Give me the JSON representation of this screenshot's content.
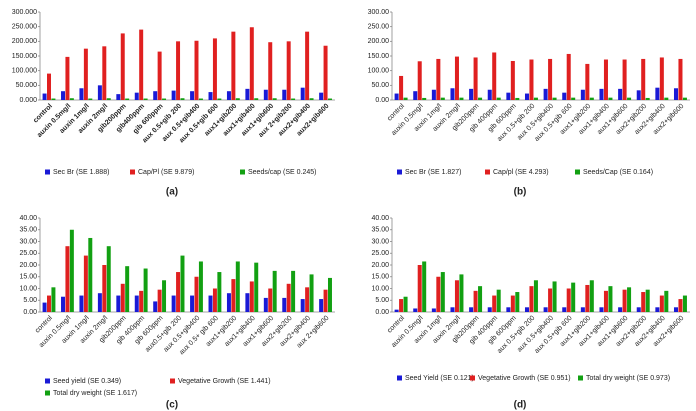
{
  "chart_data": [
    {
      "type": "bar",
      "label": "(a)",
      "bold_categories": true,
      "categories": [
        "control",
        "auxin 0.5mg/l",
        "auxin 1mg/l",
        "auxin 2mg/l",
        "gib200ppm",
        "gib400ppm",
        "gib 600ppm",
        "aux 0.5+gib 200",
        "aux 0.5+gib400",
        "aux 0.5+gib 600",
        "aux1+gib200",
        "aux1+gib400",
        "aux1+gib600",
        "aux 2+gib200",
        "aux2+gib400",
        "aux2+gib600"
      ],
      "series": [
        {
          "name": "Sec Br (SE 1.888)",
          "color": "#1a1ad6",
          "values": [
            22,
            30,
            40,
            50,
            20,
            25,
            30,
            32,
            30,
            27,
            30,
            38,
            35,
            35,
            42,
            25
          ]
        },
        {
          "name": "Cap/Pl (SE 9.879)",
          "color": "#e02020",
          "values": [
            90,
            147,
            175,
            183,
            227,
            240,
            165,
            200,
            202,
            210,
            233,
            248,
            197,
            200,
            233,
            185
          ]
        },
        {
          "name": "Seeds/cap (SE 0.245)",
          "color": "#12a012",
          "values": [
            5,
            6,
            5,
            6,
            5,
            5,
            5,
            6,
            5,
            5,
            6,
            6,
            6,
            5,
            6,
            5
          ]
        }
      ],
      "ylim": [
        0,
        300
      ],
      "yticks": [
        {
          "value": 0,
          "label": "0.000"
        },
        {
          "value": 50,
          "label": "50.000"
        },
        {
          "value": 100,
          "label": "100.000"
        },
        {
          "value": 150,
          "label": "150.000"
        },
        {
          "value": 200,
          "label": "200.000"
        },
        {
          "value": 250,
          "label": "250.000"
        },
        {
          "value": 300,
          "label": "300.000"
        }
      ]
    },
    {
      "type": "bar",
      "label": "(b)",
      "bold_categories": false,
      "categories": [
        "control",
        "auxin 0.5mg/l",
        "auxin 1mg/l",
        "auxin 2mg/l",
        "gib200ppm",
        "gib 400ppm",
        "gib 600ppm",
        "aux 0.5+gib 200",
        "aux 0.5+gib400",
        "aux 0.5+gib 600",
        "aux1+gib200",
        "aux1+gib400",
        "aux1+gib600",
        "aux2+gib200",
        "aux2+gib400",
        "aux2+gib600"
      ],
      "series": [
        {
          "name": "Sec Br (SE 1.827)",
          "color": "#1a1ad6",
          "values": [
            22,
            30,
            35,
            40,
            38,
            35,
            25,
            22,
            38,
            25,
            35,
            38,
            38,
            33,
            42,
            40
          ]
        },
        {
          "name": "Cap/pl (SE 4.293)",
          "color": "#e02020",
          "values": [
            82,
            132,
            140,
            148,
            145,
            162,
            133,
            138,
            140,
            157,
            123,
            138,
            138,
            140,
            145,
            140
          ]
        },
        {
          "name": "Seeds/Cap (SE 0.164)",
          "color": "#12a012",
          "values": [
            8,
            7,
            8,
            8,
            8,
            8,
            7,
            8,
            8,
            8,
            8,
            8,
            8,
            7,
            8,
            8
          ]
        }
      ],
      "ylim": [
        0,
        300
      ],
      "yticks": [
        {
          "value": 0,
          "label": "0.00"
        },
        {
          "value": 50,
          "label": "50.00"
        },
        {
          "value": 100,
          "label": "100.00"
        },
        {
          "value": 150,
          "label": "150.00"
        },
        {
          "value": 200,
          "label": "200.00"
        },
        {
          "value": 250,
          "label": "250.00"
        },
        {
          "value": 300,
          "label": "300.00"
        }
      ]
    },
    {
      "type": "bar",
      "label": "(c)",
      "bold_categories": false,
      "categories": [
        "control",
        "auxin 0.5mg/l",
        "auxin 1mg/l",
        "auxin 2mg/l",
        "gib200ppm",
        "gib 400ppm",
        "gib 600ppm",
        "aux0.5+gib 200",
        "aux 0.5+gib400",
        "aux 0.5+ gib 600",
        "aux1+gib200",
        "aux1+gib400",
        "aux1+gib600",
        "aux2+gib200",
        "aux2+gib400",
        "aux 2+gib600"
      ],
      "series": [
        {
          "name": "Seed yield (SE 0.349)",
          "color": "#1a1ad6",
          "values": [
            4,
            6.5,
            7,
            8,
            7,
            7,
            4.5,
            7,
            7,
            7,
            8,
            8,
            6,
            6,
            5.5,
            5.5
          ]
        },
        {
          "name": "Vegetative Growth (SE 1.441)",
          "color": "#e02020",
          "values": [
            7,
            28,
            24,
            20,
            12,
            9,
            9.5,
            17,
            15,
            10,
            14,
            13,
            10,
            12,
            10.5,
            9.5
          ]
        },
        {
          "name": "Total dry weight (SE 1.617)",
          "color": "#12a012",
          "values": [
            10.5,
            35,
            31.5,
            28,
            19.5,
            18.5,
            13.5,
            24,
            21.5,
            17,
            21.5,
            21,
            17.5,
            17.5,
            16,
            14.5
          ]
        }
      ],
      "ylim": [
        0,
        40
      ],
      "yticks": [
        {
          "value": 0,
          "label": "0.00"
        },
        {
          "value": 5,
          "label": "5.00"
        },
        {
          "value": 10,
          "label": "10.00"
        },
        {
          "value": 15,
          "label": "15.00"
        },
        {
          "value": 20,
          "label": "20.00"
        },
        {
          "value": 25,
          "label": "25.00"
        },
        {
          "value": 30,
          "label": "30.00"
        },
        {
          "value": 35,
          "label": "35.00"
        },
        {
          "value": 40,
          "label": "40.00"
        }
      ]
    },
    {
      "type": "bar",
      "label": "(d)",
      "bold_categories": false,
      "categories": [
        "control",
        "auxin 0.5mg/l",
        "auxin 1mg/l",
        "auxin 2mg/l",
        "gib200ppm",
        "gib 400ppm",
        "gib 600ppm",
        "aux 0.5+gib 200",
        "aux 0.5+gib400",
        "aux 0.5+gib 600",
        "aux1+gib200",
        "aux1+gib400",
        "aux1+gib600",
        "aux2+gib200",
        "aux2+gib400",
        "aux2+gib600"
      ],
      "series": [
        {
          "name": "Seed Yield (SE 0.121)",
          "color": "#1a1ad6",
          "values": [
            1,
            1.5,
            1.5,
            2,
            2,
            2,
            2,
            2,
            2,
            2,
            2,
            2,
            2,
            2,
            2,
            2
          ]
        },
        {
          "name": "Vegetative Growth (SE 0.951)",
          "color": "#e02020",
          "values": [
            5.5,
            20,
            15,
            13.5,
            9,
            7,
            7,
            11,
            10,
            10,
            11.5,
            9,
            9.5,
            8.5,
            7,
            5.5
          ]
        },
        {
          "name": "Total dry weight (SE 0.973)",
          "color": "#12a012",
          "values": [
            6.5,
            21.5,
            17,
            16,
            11,
            9.5,
            8.5,
            13.5,
            13,
            12.5,
            13.5,
            11,
            10.5,
            9.5,
            9,
            7
          ]
        }
      ],
      "ylim": [
        0,
        40
      ],
      "yticks": [
        {
          "value": 0,
          "label": "0.00"
        },
        {
          "value": 5,
          "label": "5.00"
        },
        {
          "value": 10,
          "label": "10.00"
        },
        {
          "value": 15,
          "label": "15.00"
        },
        {
          "value": 20,
          "label": "20.00"
        },
        {
          "value": 25,
          "label": "25.00"
        },
        {
          "value": 30,
          "label": "30.00"
        },
        {
          "value": 35,
          "label": "35.00"
        },
        {
          "value": 40,
          "label": "40.00"
        }
      ]
    }
  ]
}
